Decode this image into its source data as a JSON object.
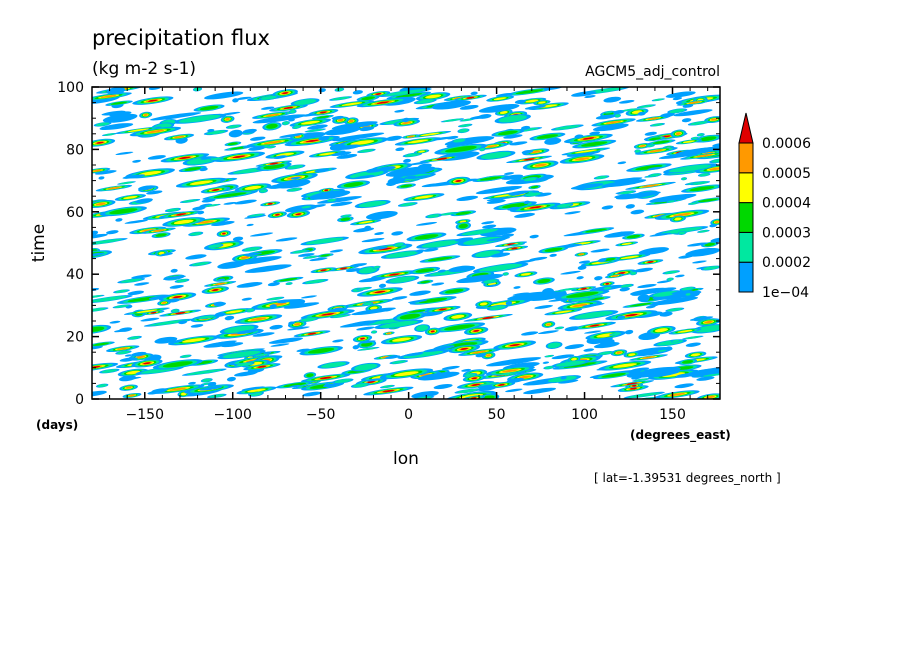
{
  "chart_data": {
    "type": "heatmap",
    "title": "precipitation flux",
    "subtitle": "(kg m-2 s-1)",
    "dataset_label": "AGCM5_adj_control",
    "xlabel": "lon",
    "x_units": "(degrees_east)",
    "ylabel": "time",
    "y_units": "(days)",
    "footnote": "[ lat=-1.39531 degrees_north ]",
    "xlim": [
      -180,
      177
    ],
    "ylim": [
      0,
      100
    ],
    "x_ticks": [
      -150,
      -100,
      -50,
      0,
      50,
      100,
      150
    ],
    "y_ticks": [
      0,
      20,
      40,
      60,
      80,
      100
    ],
    "grid": false,
    "legend_position": "right",
    "colorbar": {
      "levels": [
        "1e-04",
        "0.0002",
        "0.0003",
        "0.0004",
        "0.0005",
        "0.0006"
      ],
      "colors": [
        "#00a0ff",
        "#00e8a0",
        "#00d800",
        "#ffff00",
        "#ff9900",
        "#e00000"
      ],
      "extend": "max"
    },
    "pattern": "scattered eastward-propagating precipitation streaks across all longitudes and times"
  }
}
